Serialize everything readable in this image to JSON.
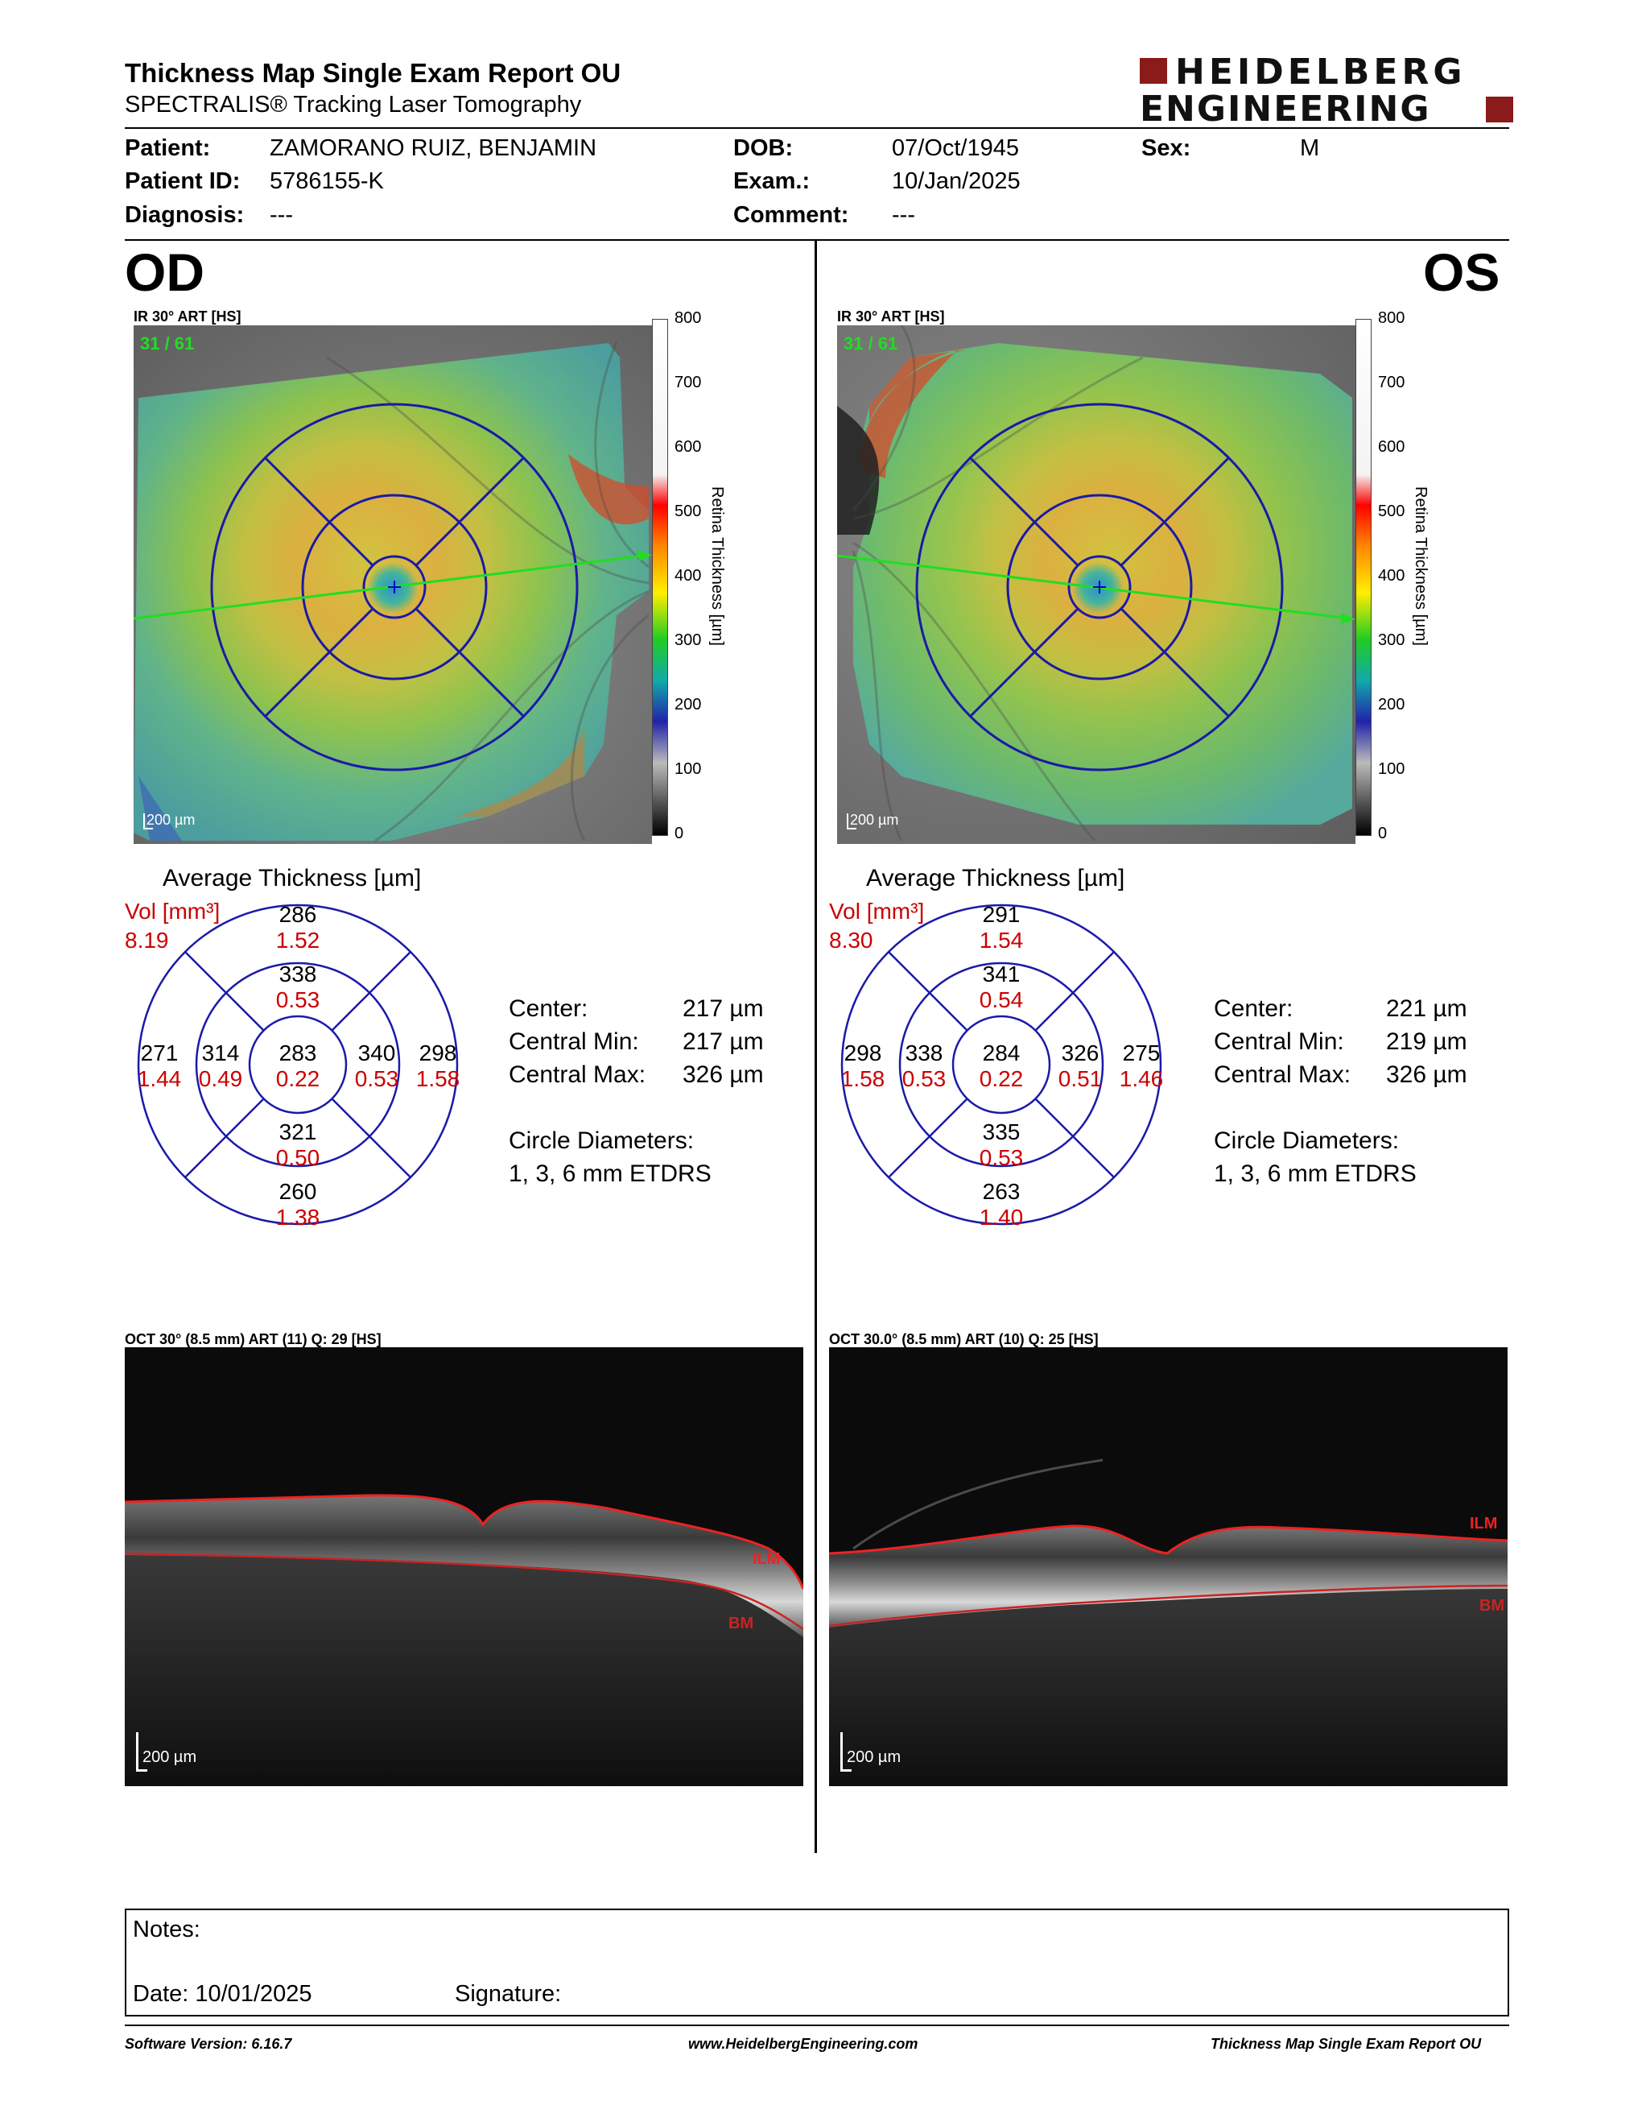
{
  "header": {
    "title": "Thickness Map Single Exam Report OU",
    "subtitle": "SPECTRALIS® Tracking Laser Tomography",
    "logo_line1": "HEIDELBERG",
    "logo_line2": "ENGINEERING",
    "brand_color": "#8b1a1a"
  },
  "patient": {
    "patient_label": "Patient:",
    "patient_value": "ZAMORANO RUIZ, BENJAMIN",
    "id_label": "Patient ID:",
    "id_value": "5786155-K",
    "diagnosis_label": "Diagnosis:",
    "diagnosis_value": "---",
    "dob_label": "DOB:",
    "dob_value": "07/Oct/1945",
    "exam_label": "Exam.:",
    "exam_value": "10/Jan/2025",
    "comment_label": "Comment:",
    "comment_value": "---",
    "sex_label": "Sex:",
    "sex_value": "M"
  },
  "scale": {
    "ticks": [
      "800",
      "700",
      "600",
      "500",
      "400",
      "300",
      "200",
      "100",
      "0"
    ],
    "label": "Retina Thickness [µm]"
  },
  "od": {
    "eye": "OD",
    "ir_label": "IR 30° ART [HS]",
    "frame": "31 / 61",
    "scalebar": "200 µm",
    "avg_title": "Average Thickness [µm]",
    "vol_label": "Vol [mm³]",
    "vol_value": "8.19",
    "sectors": {
      "outer_sup": [
        "286",
        "1.52"
      ],
      "inner_sup": [
        "338",
        "0.53"
      ],
      "outer_temp": [
        "271",
        "1.44"
      ],
      "inner_temp": [
        "314",
        "0.49"
      ],
      "center": [
        "283",
        "0.22"
      ],
      "inner_nas": [
        "340",
        "0.53"
      ],
      "outer_nas": [
        "298",
        "1.58"
      ],
      "inner_inf": [
        "321",
        "0.50"
      ],
      "outer_inf": [
        "260",
        "1.38"
      ]
    },
    "center_label": "Center:",
    "center_value": "217 µm",
    "cmin_label": "Central Min:",
    "cmin_value": "217 µm",
    "cmax_label": "Central Max:",
    "cmax_value": "326 µm",
    "circle_label": "Circle Diameters:",
    "circle_value": "1, 3, 6 mm ETDRS",
    "oct_label": "OCT 30° (8.5 mm) ART (11) Q: 29 [HS]",
    "oct_scalebar": "200 µm",
    "ilm": "ILM",
    "bm": "BM"
  },
  "os": {
    "eye": "OS",
    "ir_label": "IR 30° ART [HS]",
    "frame": "31 / 61",
    "scalebar": "200 µm",
    "avg_title": "Average Thickness [µm]",
    "vol_label": "Vol [mm³]",
    "vol_value": "8.30",
    "sectors": {
      "outer_sup": [
        "291",
        "1.54"
      ],
      "inner_sup": [
        "341",
        "0.54"
      ],
      "outer_temp": [
        "298",
        "1.58"
      ],
      "inner_temp": [
        "338",
        "0.53"
      ],
      "center": [
        "284",
        "0.22"
      ],
      "inner_nas": [
        "326",
        "0.51"
      ],
      "outer_nas": [
        "275",
        "1.46"
      ],
      "inner_inf": [
        "335",
        "0.53"
      ],
      "outer_inf": [
        "263",
        "1.40"
      ]
    },
    "center_label": "Center:",
    "center_value": "221 µm",
    "cmin_label": "Central Min:",
    "cmin_value": "219 µm",
    "cmax_label": "Central Max:",
    "cmax_value": "326 µm",
    "circle_label": "Circle Diameters:",
    "circle_value": "1, 3, 6 mm ETDRS",
    "oct_label": "OCT 30.0° (8.5 mm) ART (10) Q: 25 [HS]",
    "oct_scalebar": "200 µm",
    "ilm": "ILM",
    "bm": "BM"
  },
  "notes": {
    "notes_label": "Notes:",
    "date_label": "Date: 10/01/2025",
    "signature_label": "Signature:"
  },
  "footer": {
    "software": "Software Version: 6.16.7",
    "website": "www.HeidelbergEngineering.com",
    "report": "Thickness Map Single Exam Report OU"
  }
}
